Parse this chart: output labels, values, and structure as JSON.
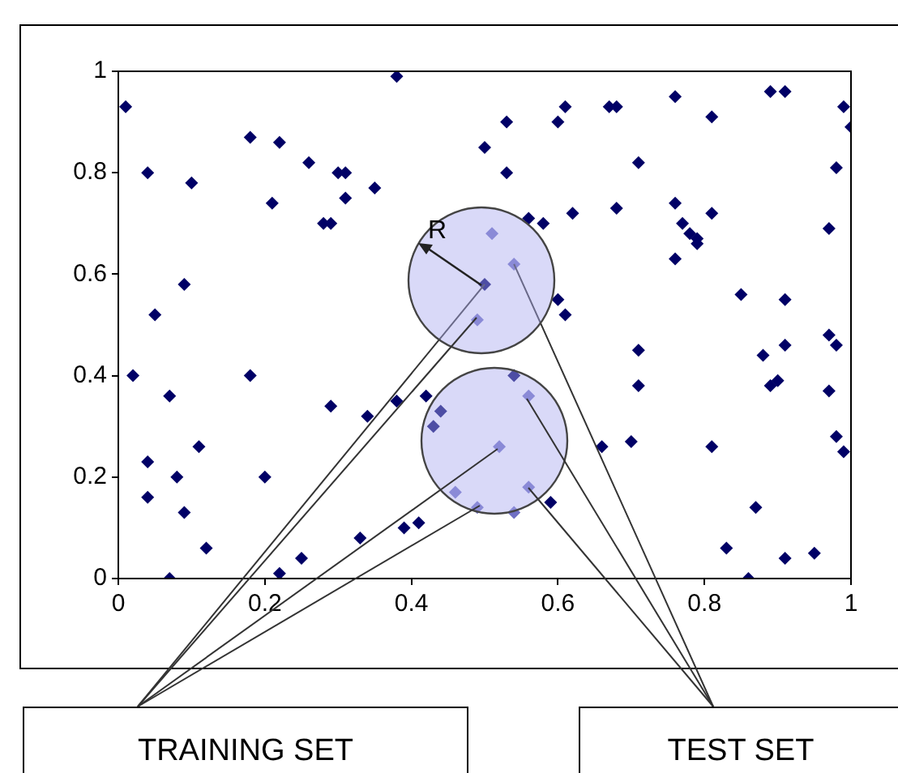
{
  "chart_data": {
    "type": "scatter",
    "marker": "diamond",
    "xlim": [
      0,
      1
    ],
    "xticks": [
      0,
      0.2,
      0.4,
      0.6,
      0.8,
      1
    ],
    "ylim": [
      0,
      1
    ],
    "yticks": [
      0,
      0.2,
      0.4,
      0.6,
      0.8,
      1
    ],
    "annotations": [
      "R",
      {
        "text": "TRAINING SET",
        "x": 0.5,
        "y": 0.58
      },
      {
        "text": "TEST SET",
        "x": 0.54,
        "y": 0.62
      }
    ],
    "series": [
      {
        "color": "#000066",
        "x": [
          0.01,
          0.04,
          0.1,
          0.18,
          0.22,
          0.21,
          0.26,
          0.3,
          0.31,
          0.31,
          0.28,
          0.29,
          0.35,
          0.38,
          0.5,
          0.09,
          0.05,
          0.53,
          0.61,
          0.6,
          0.67,
          0.68,
          0.76,
          0.81,
          0.89,
          0.91,
          0.99,
          1.0,
          0.53,
          0.71,
          0.98,
          0.56,
          0.58,
          0.62,
          0.68,
          0.76,
          0.81,
          0.77,
          0.78,
          0.79,
          0.79,
          0.97,
          0.76,
          0.85,
          0.91,
          0.6,
          0.61,
          0.02,
          0.07,
          0.18,
          0.11,
          0.04,
          0.04,
          0.08,
          0.09,
          0.12,
          0.07,
          0.2,
          0.29,
          0.34,
          0.38,
          0.42,
          0.44,
          0.43,
          0.22,
          0.25,
          0.33,
          0.39,
          0.41,
          0.71,
          0.71,
          0.66,
          0.7,
          0.54,
          0.59,
          0.81,
          0.88,
          0.91,
          0.9,
          0.89,
          0.97,
          0.98,
          0.97,
          0.98,
          0.99,
          0.87,
          0.83,
          0.91,
          0.95,
          0.86,
          0.5
        ],
        "values": [
          0.93,
          0.8,
          0.78,
          0.87,
          0.86,
          0.74,
          0.82,
          0.8,
          0.8,
          0.75,
          0.7,
          0.7,
          0.77,
          0.99,
          0.85,
          0.58,
          0.52,
          0.9,
          0.93,
          0.9,
          0.93,
          0.93,
          0.95,
          0.91,
          0.96,
          0.96,
          0.93,
          0.89,
          0.8,
          0.82,
          0.81,
          0.71,
          0.7,
          0.72,
          0.73,
          0.74,
          0.72,
          0.7,
          0.68,
          0.67,
          0.66,
          0.69,
          0.63,
          0.56,
          0.55,
          0.55,
          0.52,
          0.4,
          0.36,
          0.4,
          0.26,
          0.23,
          0.16,
          0.2,
          0.13,
          0.06,
          0.0,
          0.2,
          0.34,
          0.32,
          0.35,
          0.36,
          0.33,
          0.3,
          0.01,
          0.04,
          0.08,
          0.1,
          0.11,
          0.45,
          0.38,
          0.26,
          0.27,
          0.4,
          0.15,
          0.26,
          0.44,
          0.46,
          0.39,
          0.38,
          0.48,
          0.46,
          0.37,
          0.28,
          0.25,
          0.14,
          0.06,
          0.04,
          0.05,
          0.0,
          0.58
        ]
      },
      {
        "color": "#7070c4",
        "x": [
          0.49,
          0.52,
          0.46,
          0.49,
          0.51,
          0.54,
          0.56,
          0.56,
          0.54
        ],
        "values": [
          0.51,
          0.26,
          0.17,
          0.14,
          0.68,
          0.62,
          0.36,
          0.18,
          0.13
        ]
      }
    ]
  }
}
